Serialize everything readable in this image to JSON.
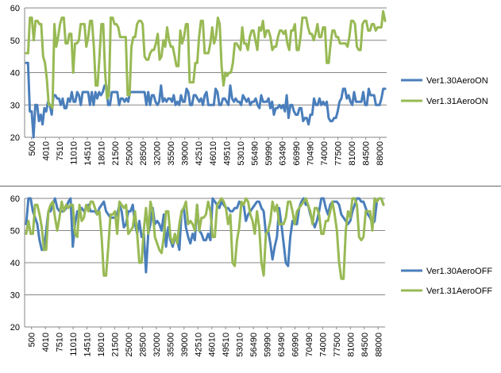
{
  "chart_data": [
    {
      "id": "top",
      "type": "line",
      "title": "",
      "xlabel": "",
      "ylabel": "",
      "ylim": [
        20,
        60
      ],
      "yticks": [
        20,
        30,
        40,
        50,
        60
      ],
      "grid": "horizontal",
      "legend": "right",
      "xticklabels": [
        "500",
        "4010",
        "7510",
        "11010",
        "14510",
        "18010",
        "21500",
        "25000",
        "28500",
        "32000",
        "35500",
        "39000",
        "42510",
        "46010",
        "49510",
        "53010",
        "56490",
        "59990",
        "63490",
        "66990",
        "70490",
        "74000",
        "77500",
        "81000",
        "84500",
        "88000"
      ],
      "series": [
        {
          "name": "Ver1.30AeroON",
          "color": "#4a7ebb",
          "values": [
            43,
            43,
            28,
            28,
            20,
            30,
            30,
            25,
            27,
            24,
            29,
            28,
            31,
            30,
            27,
            33,
            33,
            32,
            32,
            30,
            32,
            29,
            29,
            32,
            31,
            34,
            31,
            31,
            34,
            33,
            30,
            34,
            34,
            34,
            34,
            30,
            34,
            30,
            34,
            32,
            34,
            33,
            34,
            36,
            36,
            30,
            30,
            34,
            34,
            34,
            34,
            30,
            32,
            32,
            31,
            32,
            31,
            34,
            34,
            34,
            34,
            34,
            34,
            34,
            34,
            34,
            30,
            34,
            30,
            33,
            33,
            31,
            30,
            31,
            36,
            31,
            32,
            31,
            32,
            32,
            31,
            33,
            30,
            31,
            30,
            33,
            31,
            31,
            35,
            34,
            30,
            30,
            33,
            33,
            32,
            31,
            32,
            30,
            33,
            34,
            30,
            30,
            30,
            30,
            35,
            34,
            30,
            30,
            32,
            32,
            31,
            30,
            36,
            32,
            31,
            32,
            31,
            31,
            30,
            33,
            32,
            31,
            32,
            30,
            31,
            31,
            32,
            30,
            29,
            33,
            31,
            31,
            31,
            32,
            29,
            31,
            27,
            29,
            29,
            30,
            29,
            30,
            28,
            33,
            26,
            30,
            30,
            28,
            27,
            27,
            29,
            29,
            25,
            26,
            26,
            24,
            27,
            27,
            32,
            30,
            30,
            32,
            30,
            31,
            30,
            31,
            26,
            25,
            25,
            26,
            26,
            28,
            31,
            32,
            35,
            35,
            32,
            33,
            31,
            30,
            34,
            31,
            31,
            31,
            31,
            34,
            30,
            30,
            35,
            33,
            33,
            33,
            30,
            30,
            30,
            32,
            35,
            35
          ]
        },
        {
          "name": "Ver1.31AeroON",
          "color": "#98b954",
          "values": [
            46,
            46,
            57,
            57,
            50,
            56,
            56,
            55,
            55,
            45,
            43,
            38,
            30,
            30,
            29,
            55,
            48,
            51,
            55,
            57,
            57,
            49,
            49,
            52,
            52,
            40,
            49,
            49,
            50,
            55,
            55,
            55,
            48,
            51,
            56,
            56,
            48,
            36,
            36,
            45,
            55,
            55,
            40,
            32,
            33,
            57,
            57,
            55,
            55,
            54,
            51,
            51,
            51,
            51,
            33,
            33,
            48,
            51,
            51,
            55,
            56,
            56,
            55,
            45,
            44,
            44,
            46,
            47,
            47,
            49,
            52,
            44,
            45,
            50,
            48,
            54,
            50,
            48,
            48,
            45,
            42,
            42,
            53,
            49,
            51,
            55,
            55,
            37,
            37,
            37,
            43,
            43,
            51,
            56,
            56,
            46,
            46,
            46,
            49,
            54,
            49,
            51,
            57,
            55,
            42,
            36,
            40,
            39,
            40,
            40,
            43,
            49,
            49,
            48,
            47,
            54,
            49,
            49,
            47,
            51,
            53,
            53,
            50,
            47,
            54,
            53,
            56,
            51,
            53,
            53,
            51,
            47,
            48,
            48,
            51,
            53,
            53,
            52,
            53,
            49,
            47,
            53,
            53,
            55,
            47,
            47,
            51,
            57,
            57,
            57,
            54,
            52,
            52,
            50,
            52,
            55,
            51,
            51,
            54,
            54,
            43,
            43,
            49,
            53,
            53,
            51,
            51,
            49,
            49,
            49,
            49,
            48,
            51,
            56,
            56,
            55,
            48,
            47,
            47,
            55,
            56,
            56,
            53,
            53,
            55,
            55,
            53,
            54,
            54,
            54,
            59,
            56
          ]
        }
      ]
    },
    {
      "id": "bottom",
      "type": "line",
      "title": "",
      "xlabel": "",
      "ylabel": "",
      "ylim": [
        20,
        60
      ],
      "yticks": [
        20,
        30,
        40,
        50,
        60
      ],
      "grid": "horizontal",
      "legend": "right",
      "xticklabels": [
        "500",
        "4010",
        "7510",
        "11010",
        "14510",
        "18010",
        "21500",
        "25000",
        "28500",
        "32000",
        "35500",
        "39000",
        "42510",
        "46010",
        "49510",
        "53010",
        "56490",
        "59990",
        "63490",
        "66990",
        "70490",
        "74000",
        "77500",
        "81000",
        "84500",
        "88000"
      ],
      "series": [
        {
          "name": "Ver1.30AeroOFF",
          "color": "#4a7ebb",
          "values": [
            52,
            60,
            60,
            56,
            54,
            52,
            47,
            44,
            44,
            50,
            56,
            56,
            58,
            60,
            57,
            56,
            56,
            56,
            57,
            59,
            60,
            45,
            52,
            56,
            56,
            57,
            56,
            57,
            58,
            56,
            56,
            56,
            55,
            57,
            58,
            59,
            56,
            55,
            54,
            54,
            54,
            55,
            58,
            56,
            51,
            52,
            56,
            56,
            58,
            52,
            49,
            53,
            48,
            49,
            37,
            49,
            52,
            57,
            52,
            53,
            52,
            50,
            55,
            45,
            51,
            47,
            45,
            48,
            47,
            44,
            56,
            57,
            51,
            48,
            46,
            49,
            47,
            58,
            50,
            49,
            47,
            47,
            49,
            47,
            60,
            59,
            58,
            57,
            59,
            58,
            57,
            57,
            56,
            56,
            57,
            57,
            59,
            58,
            58,
            53,
            55,
            56,
            57,
            58,
            59,
            59,
            57,
            56,
            49,
            50,
            46,
            41,
            45,
            48,
            57,
            52,
            46,
            40,
            39,
            48,
            53,
            52,
            52,
            57,
            59,
            60,
            58,
            58,
            55,
            53,
            51,
            53,
            56,
            60,
            60,
            57,
            55,
            58,
            59,
            59,
            59,
            58,
            55,
            54,
            53,
            52,
            53,
            56,
            58,
            60,
            60,
            59,
            59,
            57,
            55,
            54,
            52,
            53,
            59,
            60,
            60,
            58
          ]
        },
        {
          "name": "Ver1.31AeroOFF",
          "color": "#98b954",
          "values": [
            49,
            53,
            49,
            49,
            58,
            58,
            55,
            51,
            44,
            44,
            56,
            58,
            59,
            54,
            50,
            54,
            59,
            56,
            58,
            57,
            58,
            58,
            49,
            48,
            58,
            53,
            54,
            58,
            56,
            59,
            59,
            57,
            55,
            56,
            48,
            36,
            36,
            45,
            55,
            55,
            56,
            49,
            59,
            58,
            57,
            58,
            49,
            50,
            51,
            56,
            49,
            40,
            40,
            50,
            57,
            49,
            59,
            56,
            48,
            46,
            44,
            43,
            48,
            56,
            56,
            48,
            46,
            49,
            46,
            52,
            56,
            57,
            59,
            52,
            53,
            52,
            50,
            58,
            50,
            54,
            54,
            55,
            59,
            56,
            48,
            48,
            58,
            59,
            60,
            59,
            57,
            52,
            55,
            40,
            39,
            47,
            51,
            59,
            58,
            60,
            59,
            55,
            53,
            49,
            56,
            51,
            40,
            36,
            49,
            50,
            53,
            59,
            56,
            58,
            52,
            52,
            52,
            54,
            59,
            59,
            56,
            52,
            56,
            57,
            58,
            59,
            60,
            58,
            56,
            52,
            57,
            57,
            55,
            49,
            49,
            53,
            53,
            56,
            59,
            55,
            50,
            40,
            35,
            35,
            50,
            56,
            54,
            60,
            60,
            58,
            48,
            47,
            48,
            56,
            56,
            56,
            50,
            60,
            59,
            60,
            60,
            58
          ]
        }
      ]
    }
  ]
}
